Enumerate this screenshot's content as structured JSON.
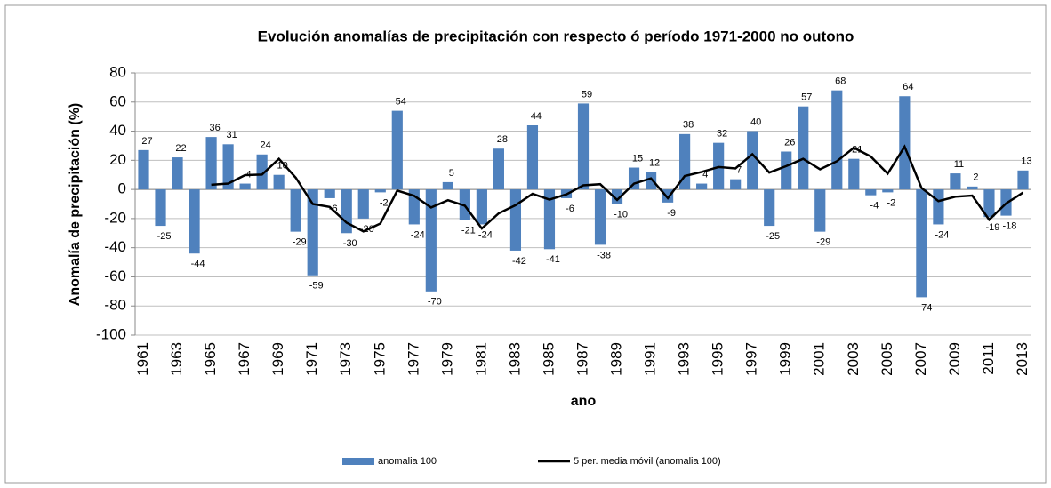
{
  "chart_data": {
    "type": "bar+line",
    "title": "Evolución  anomalías de  precipitación con respecto ó período 1971-2000 no outono",
    "x_label": "ano",
    "y_label": "Anomalía de precipitación  (%)",
    "categories": [
      "1961",
      null,
      "1963",
      null,
      "1965",
      null,
      "1967",
      null,
      "1969",
      null,
      "1971",
      null,
      "1973",
      null,
      "1975",
      null,
      "1977",
      null,
      "1979",
      null,
      "1981",
      null,
      "1983",
      null,
      "1985",
      null,
      "1987",
      null,
      "1989",
      null,
      "1991",
      null,
      "1993",
      null,
      "1995",
      null,
      "1997",
      null,
      "1999",
      null,
      "2001",
      null,
      "2003",
      null,
      "2005",
      null,
      "2007",
      null,
      "2009",
      null,
      "2011",
      null,
      "2013"
    ],
    "series": [
      {
        "name": "anomalia 100",
        "type": "bar",
        "color": "#4f81bd",
        "values": [
          27,
          -25,
          22,
          -44,
          36,
          31,
          4,
          24,
          10,
          -29,
          -59,
          -6,
          -30,
          -20,
          -2,
          54,
          -24,
          -70,
          5,
          -21,
          -24,
          28,
          -42,
          44,
          -41,
          -6,
          59,
          -38,
          -10,
          15,
          12,
          -9,
          38,
          4,
          32,
          7,
          40,
          -25,
          26,
          57,
          -29,
          68,
          21,
          -4,
          -2,
          64,
          -74,
          -24,
          11,
          2,
          -19,
          -18,
          13
        ]
      },
      {
        "name": "5 per. media móvil (anomalia 100)",
        "type": "line",
        "color": "#000000",
        "values": [
          null,
          null,
          null,
          null,
          3.2,
          4,
          9.8,
          10.2,
          21,
          8,
          -10,
          -12,
          -22.8,
          -28.8,
          -23.4,
          -0.8,
          -4.4,
          -12.4,
          -7.4,
          -11.2,
          -26.8,
          -16.4,
          -10.8,
          -3,
          -7,
          -3.4,
          2.8,
          3.6,
          -7.2,
          4,
          7.6,
          -6,
          9.2,
          12,
          15.4,
          14.4,
          24.2,
          11.6,
          16,
          21,
          13.8,
          19.4,
          28.6,
          22.6,
          10.8,
          29.4,
          1,
          -8,
          -5,
          -4.2,
          -20.8,
          -9.6,
          -2.2
        ]
      }
    ],
    "ylim": [
      -100,
      80
    ],
    "yticks": [
      -100,
      -80,
      -60,
      -40,
      -20,
      0,
      20,
      40,
      60,
      80
    ],
    "grid": true,
    "legend": "bottom"
  }
}
